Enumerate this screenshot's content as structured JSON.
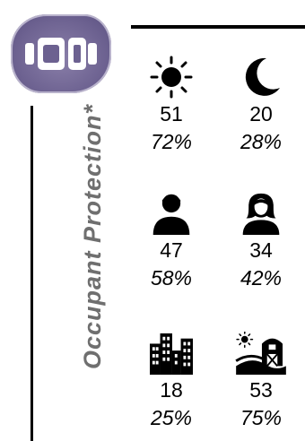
{
  "header": {
    "badge_icon": "seatbelt-buckle-icon",
    "badge_color": "#6c6190"
  },
  "side_label": "Occupant Protection*",
  "stats": [
    {
      "key": "day",
      "icon": "sun-icon",
      "count": "51",
      "percent": "72%"
    },
    {
      "key": "night",
      "icon": "moon-icon",
      "count": "20",
      "percent": "28%"
    },
    {
      "key": "male",
      "icon": "male-person-icon",
      "count": "47",
      "percent": "58%"
    },
    {
      "key": "female",
      "icon": "female-person-icon",
      "count": "34",
      "percent": "42%"
    },
    {
      "key": "urban",
      "icon": "city-buildings-icon",
      "count": "18",
      "percent": "25%"
    },
    {
      "key": "rural",
      "icon": "rural-barn-icon",
      "count": "53",
      "percent": "75%"
    }
  ]
}
